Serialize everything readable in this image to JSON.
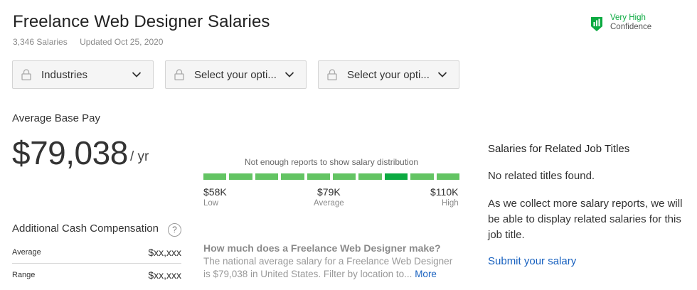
{
  "header": {
    "title": "Freelance Web Designer Salaries",
    "salary_count": "3,346 Salaries",
    "updated": "Updated Oct 25, 2020"
  },
  "confidence": {
    "level": "Very High",
    "label": "Confidence",
    "icon": "shield-bars-icon",
    "color": "#0caa41"
  },
  "filters": [
    {
      "label": "Industries",
      "icon": "lock-icon"
    },
    {
      "label": "Select your opti...",
      "icon": "lock-icon"
    },
    {
      "label": "Select your opti...",
      "icon": "lock-icon"
    }
  ],
  "base_pay": {
    "label": "Average Base Pay",
    "amount": "$79,038",
    "unit": "/ yr"
  },
  "distribution": {
    "note": "Not enough reports to show salary distribution",
    "segments": 10,
    "highlight_segment": 7,
    "low_value": "$58K",
    "low_label": "Low",
    "avg_value": "$79K",
    "avg_label": "Average",
    "high_value": "$110K",
    "high_label": "High",
    "color": "#63c463",
    "highlight_color": "#0caa41"
  },
  "additional_comp": {
    "label": "Additional Cash Compensation",
    "help": "?",
    "rows": [
      {
        "label": "Average",
        "value": "$xx,xxx"
      },
      {
        "label": "Range",
        "value": "$xx,xxx"
      }
    ]
  },
  "faq": {
    "question": "How much does a Freelance Web Designer make?",
    "answer": "The national average salary for a Freelance Web Designer is $79,038 in United States. Filter by location to...",
    "more": "More"
  },
  "related": {
    "title": "Salaries for Related Job Titles",
    "none": "No related titles found.",
    "description": "As we collect more salary reports, we will be able to display related salaries for this job title.",
    "link": "Submit your salary"
  }
}
